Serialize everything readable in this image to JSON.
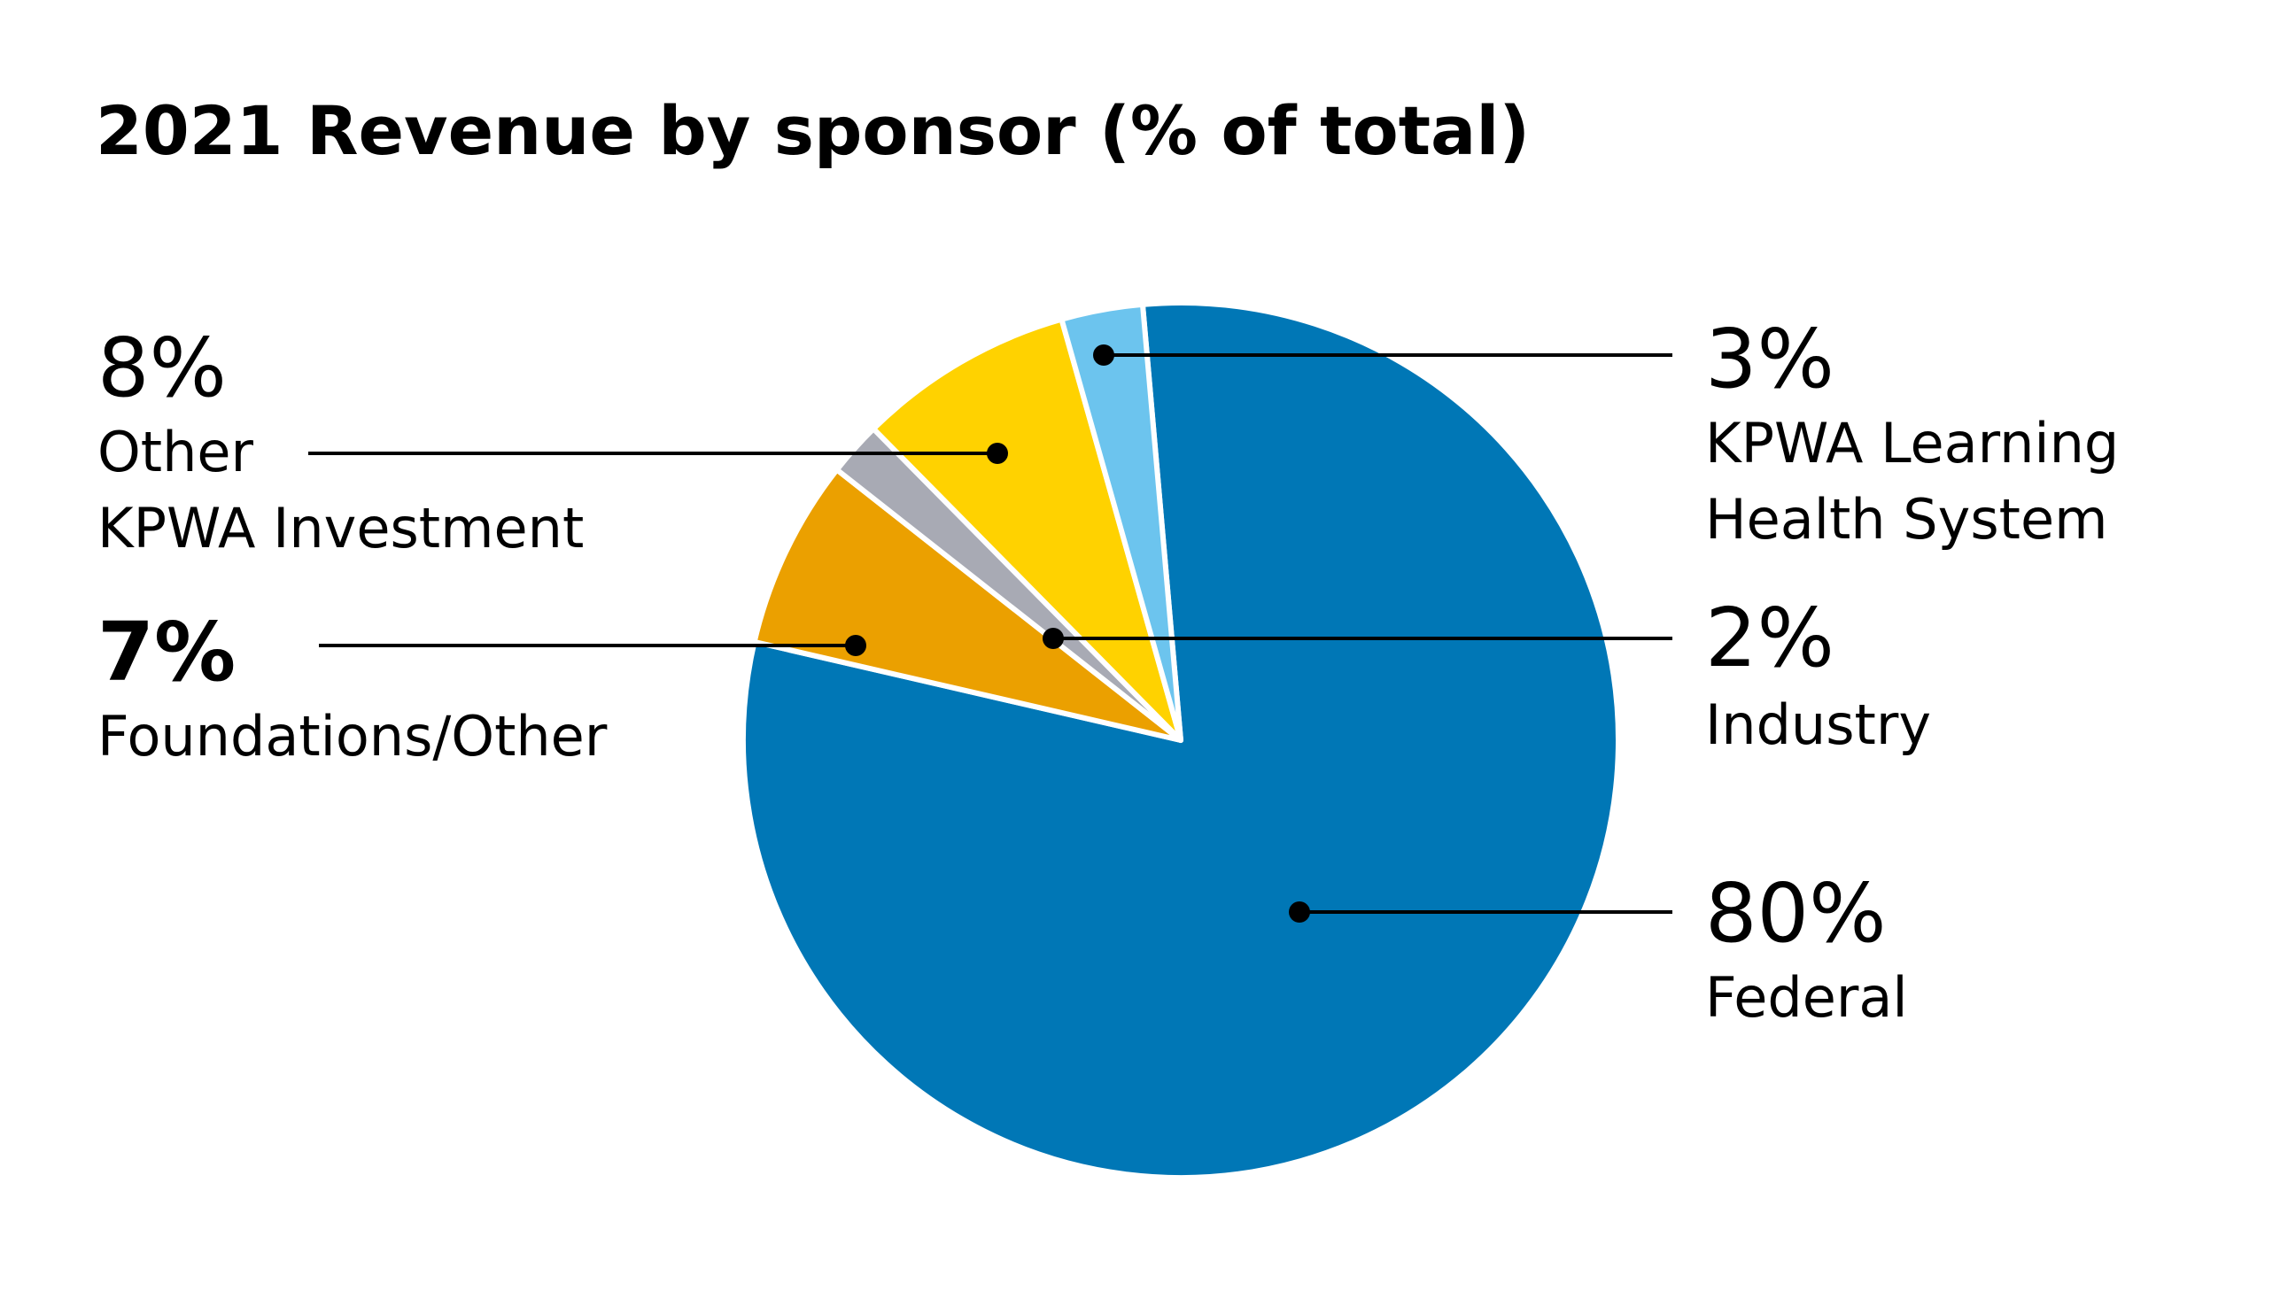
{
  "chart_data": {
    "type": "pie",
    "title": "2021 Revenue by sponsor (% of total)",
    "start_angle_deg": -5,
    "direction": "clockwise",
    "slices": [
      {
        "label": "Federal",
        "label_lines": [
          "Federal"
        ],
        "value": 80,
        "value_label": "80%",
        "color": "#0077b6"
      },
      {
        "label": "Foundations/Other",
        "label_lines": [
          "Foundations/Other"
        ],
        "value": 7,
        "value_label": "7%",
        "color": "#eba000"
      },
      {
        "label": "Industry",
        "label_lines": [
          "Industry"
        ],
        "value": 2,
        "value_label": "2%",
        "color": "#a8aab4"
      },
      {
        "label": "Other KPWA Investment",
        "label_lines": [
          "Other",
          "KPWA Investment"
        ],
        "value": 8,
        "value_label": "8%",
        "color": "#ffd200"
      },
      {
        "label": "KPWA Learning Health System",
        "label_lines": [
          "KPWA Learning",
          "Health System"
        ],
        "value": 3,
        "value_label": "3%",
        "color": "#6cc4ee"
      }
    ]
  }
}
